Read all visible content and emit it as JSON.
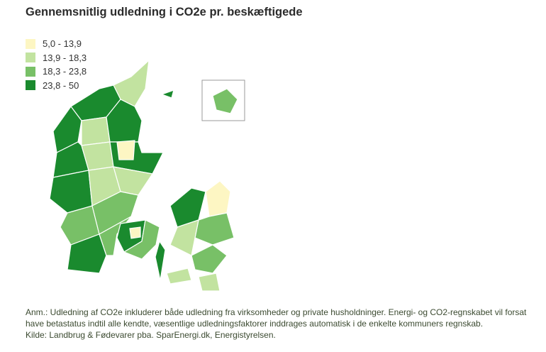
{
  "title": "Gennemsnitlig udledning i CO2e pr. beskæftigede",
  "legend": [
    {
      "label": "5,0 - 13,9",
      "color": "#fdf6c3"
    },
    {
      "label": "13,9 - 18,3",
      "color": "#c2e3a0"
    },
    {
      "label": "18,3 - 23,8",
      "color": "#78c067"
    },
    {
      "label": "23,8 - 50",
      "color": "#1a8a2e"
    }
  ],
  "note": "Anm.: Udledning af CO2e inkluderer både udledning fra virksomheder og private husholdninger. Energi- og CO2-regnskabet vil forsat have betastatus indtil alle kendte, væsentlige udledningsfaktorer inddrages automatisk i de enkelte kommuners regnskab.",
  "source": "Kilde: Landbrug & Fødevarer pba. SparEnergi.dk, Energistyrelsen."
}
